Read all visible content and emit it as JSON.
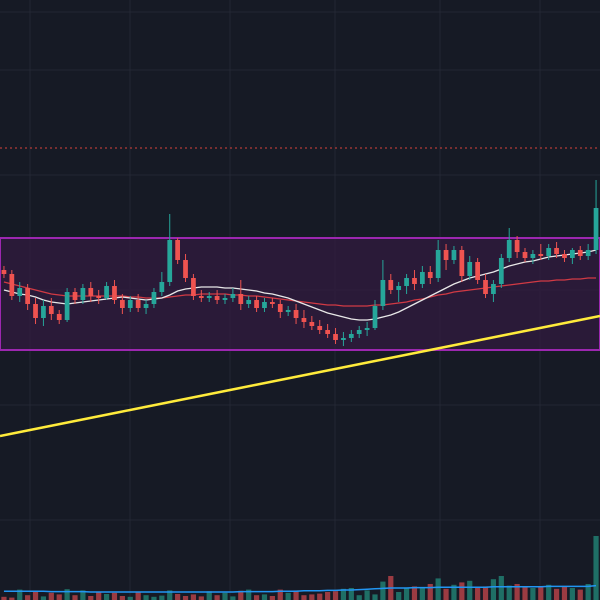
{
  "chart_data": {
    "type": "candlestick",
    "title": "",
    "xlabel": "",
    "ylabel": "",
    "grid": true,
    "legend": "none",
    "ylim": [
      0,
      600
    ],
    "volume_ylim": [
      0,
      300
    ],
    "colors": {
      "background": "#161a25",
      "grid": "#232733",
      "up": "#26a69a",
      "down": "#ef5350",
      "up_volume": "#1f6f66",
      "down_volume": "#9b3b42",
      "range_box_border": "#9c27b0",
      "range_box_fill": "#311b3f",
      "reference_line": "#d8413a",
      "ma_fast": "#e8e8e8",
      "ma_mid": "#d13a44",
      "ma_slow": "#ffeb3b",
      "volume_ma": "#2196f3"
    },
    "reference_level": 452,
    "range_box": {
      "upper": 362,
      "lower": 250
    },
    "candles": [
      {
        "o": 330,
        "h": 334,
        "l": 322,
        "c": 326
      },
      {
        "o": 326,
        "h": 330,
        "l": 300,
        "c": 304
      },
      {
        "o": 304,
        "h": 318,
        "l": 298,
        "c": 312
      },
      {
        "o": 312,
        "h": 316,
        "l": 290,
        "c": 296
      },
      {
        "o": 296,
        "h": 302,
        "l": 276,
        "c": 282
      },
      {
        "o": 282,
        "h": 300,
        "l": 274,
        "c": 294
      },
      {
        "o": 294,
        "h": 302,
        "l": 280,
        "c": 286
      },
      {
        "o": 286,
        "h": 290,
        "l": 276,
        "c": 280
      },
      {
        "o": 280,
        "h": 312,
        "l": 278,
        "c": 308
      },
      {
        "o": 308,
        "h": 312,
        "l": 296,
        "c": 300
      },
      {
        "o": 300,
        "h": 316,
        "l": 296,
        "c": 312
      },
      {
        "o": 312,
        "h": 318,
        "l": 298,
        "c": 304
      },
      {
        "o": 304,
        "h": 310,
        "l": 296,
        "c": 302
      },
      {
        "o": 302,
        "h": 318,
        "l": 300,
        "c": 314
      },
      {
        "o": 314,
        "h": 320,
        "l": 296,
        "c": 300
      },
      {
        "o": 300,
        "h": 306,
        "l": 286,
        "c": 292
      },
      {
        "o": 292,
        "h": 304,
        "l": 288,
        "c": 300
      },
      {
        "o": 300,
        "h": 306,
        "l": 288,
        "c": 292
      },
      {
        "o": 292,
        "h": 300,
        "l": 286,
        "c": 296
      },
      {
        "o": 296,
        "h": 312,
        "l": 292,
        "c": 308
      },
      {
        "o": 308,
        "h": 328,
        "l": 304,
        "c": 318
      },
      {
        "o": 318,
        "h": 386,
        "l": 314,
        "c": 360
      },
      {
        "o": 360,
        "h": 362,
        "l": 336,
        "c": 340
      },
      {
        "o": 340,
        "h": 346,
        "l": 318,
        "c": 322
      },
      {
        "o": 322,
        "h": 326,
        "l": 300,
        "c": 304
      },
      {
        "o": 304,
        "h": 310,
        "l": 298,
        "c": 302
      },
      {
        "o": 302,
        "h": 308,
        "l": 298,
        "c": 304
      },
      {
        "o": 304,
        "h": 310,
        "l": 296,
        "c": 300
      },
      {
        "o": 300,
        "h": 306,
        "l": 296,
        "c": 302
      },
      {
        "o": 302,
        "h": 312,
        "l": 298,
        "c": 306
      },
      {
        "o": 306,
        "h": 320,
        "l": 290,
        "c": 296
      },
      {
        "o": 296,
        "h": 304,
        "l": 292,
        "c": 300
      },
      {
        "o": 300,
        "h": 304,
        "l": 288,
        "c": 292
      },
      {
        "o": 292,
        "h": 302,
        "l": 288,
        "c": 298
      },
      {
        "o": 298,
        "h": 302,
        "l": 292,
        "c": 296
      },
      {
        "o": 296,
        "h": 300,
        "l": 282,
        "c": 288
      },
      {
        "o": 288,
        "h": 294,
        "l": 284,
        "c": 290
      },
      {
        "o": 290,
        "h": 296,
        "l": 276,
        "c": 282
      },
      {
        "o": 282,
        "h": 290,
        "l": 272,
        "c": 278
      },
      {
        "o": 278,
        "h": 284,
        "l": 270,
        "c": 274
      },
      {
        "o": 274,
        "h": 280,
        "l": 266,
        "c": 270
      },
      {
        "o": 270,
        "h": 276,
        "l": 262,
        "c": 266
      },
      {
        "o": 266,
        "h": 272,
        "l": 256,
        "c": 260
      },
      {
        "o": 260,
        "h": 268,
        "l": 254,
        "c": 262
      },
      {
        "o": 262,
        "h": 270,
        "l": 258,
        "c": 266
      },
      {
        "o": 266,
        "h": 274,
        "l": 262,
        "c": 270
      },
      {
        "o": 270,
        "h": 278,
        "l": 264,
        "c": 272
      },
      {
        "o": 272,
        "h": 300,
        "l": 270,
        "c": 294
      },
      {
        "o": 294,
        "h": 340,
        "l": 290,
        "c": 320
      },
      {
        "o": 320,
        "h": 326,
        "l": 306,
        "c": 310
      },
      {
        "o": 310,
        "h": 318,
        "l": 298,
        "c": 314
      },
      {
        "o": 314,
        "h": 326,
        "l": 306,
        "c": 322
      },
      {
        "o": 322,
        "h": 330,
        "l": 310,
        "c": 316
      },
      {
        "o": 316,
        "h": 334,
        "l": 312,
        "c": 328
      },
      {
        "o": 328,
        "h": 334,
        "l": 316,
        "c": 322
      },
      {
        "o": 322,
        "h": 360,
        "l": 318,
        "c": 350
      },
      {
        "o": 350,
        "h": 356,
        "l": 330,
        "c": 340
      },
      {
        "o": 340,
        "h": 354,
        "l": 336,
        "c": 350
      },
      {
        "o": 350,
        "h": 354,
        "l": 318,
        "c": 324
      },
      {
        "o": 324,
        "h": 344,
        "l": 320,
        "c": 338
      },
      {
        "o": 338,
        "h": 342,
        "l": 316,
        "c": 320
      },
      {
        "o": 320,
        "h": 326,
        "l": 302,
        "c": 306
      },
      {
        "o": 306,
        "h": 320,
        "l": 298,
        "c": 316
      },
      {
        "o": 316,
        "h": 346,
        "l": 312,
        "c": 342
      },
      {
        "o": 342,
        "h": 372,
        "l": 338,
        "c": 360
      },
      {
        "o": 360,
        "h": 364,
        "l": 342,
        "c": 348
      },
      {
        "o": 348,
        "h": 352,
        "l": 338,
        "c": 342
      },
      {
        "o": 342,
        "h": 350,
        "l": 336,
        "c": 346
      },
      {
        "o": 346,
        "h": 356,
        "l": 340,
        "c": 344
      },
      {
        "o": 344,
        "h": 356,
        "l": 340,
        "c": 352
      },
      {
        "o": 352,
        "h": 358,
        "l": 342,
        "c": 346
      },
      {
        "o": 346,
        "h": 350,
        "l": 338,
        "c": 342
      },
      {
        "o": 342,
        "h": 352,
        "l": 336,
        "c": 350
      },
      {
        "o": 350,
        "h": 354,
        "l": 340,
        "c": 344
      },
      {
        "o": 344,
        "h": 356,
        "l": 340,
        "c": 350
      },
      {
        "o": 350,
        "h": 420,
        "l": 346,
        "c": 392
      }
    ],
    "ma_fast": [
      310,
      308,
      306,
      305,
      303,
      300,
      298,
      297,
      296,
      297,
      298,
      299,
      300,
      301,
      302,
      303,
      302,
      301,
      300,
      301,
      302,
      305,
      309,
      311,
      312,
      313,
      313,
      313,
      312,
      312,
      311,
      310,
      309,
      307,
      306,
      304,
      302,
      299,
      296,
      293,
      290,
      287,
      285,
      283,
      281,
      280,
      280,
      281,
      283,
      285,
      288,
      292,
      296,
      300,
      304,
      308,
      312,
      316,
      319,
      322,
      324,
      326,
      328,
      331,
      334,
      336,
      338,
      339,
      341,
      343,
      344,
      345,
      346,
      347,
      348,
      350
    ],
    "ma_mid": [
      318,
      316,
      314,
      312,
      310,
      308,
      306,
      305,
      304,
      304,
      304,
      304,
      304,
      304,
      304,
      304,
      303,
      303,
      302,
      302,
      302,
      303,
      304,
      305,
      305,
      306,
      306,
      306,
      306,
      305,
      305,
      304,
      304,
      303,
      302,
      301,
      300,
      299,
      298,
      297,
      296,
      295,
      295,
      294,
      294,
      294,
      294,
      295,
      295,
      296,
      297,
      298,
      300,
      301,
      303,
      305,
      306,
      308,
      309,
      310,
      311,
      312,
      313,
      314,
      315,
      316,
      317,
      318,
      319,
      319,
      320,
      320,
      321,
      321,
      322,
      322
    ],
    "ma_slow": [
      164,
      167,
      170,
      173,
      176,
      179,
      182,
      185,
      188,
      191,
      194,
      197,
      200,
      203,
      206,
      209,
      212,
      215,
      218,
      221,
      224,
      227,
      230,
      233,
      236,
      239,
      242,
      245,
      248,
      251,
      254,
      257,
      260,
      263,
      266,
      269,
      272,
      275,
      278,
      281,
      284
    ],
    "volume": [
      8,
      6,
      26,
      12,
      22,
      9,
      18,
      14,
      27,
      12,
      24,
      10,
      20,
      15,
      18,
      10,
      8,
      20,
      12,
      8,
      11,
      24,
      15,
      10,
      14,
      9,
      22,
      12,
      18,
      9,
      23,
      26,
      12,
      14,
      10,
      26,
      18,
      24,
      12,
      14,
      16,
      20,
      22,
      28,
      30,
      12,
      24,
      14,
      46,
      60,
      20,
      30,
      34,
      30,
      40,
      54,
      28,
      38,
      44,
      48,
      30,
      34,
      52,
      60,
      36,
      40,
      32,
      30,
      34,
      38,
      28,
      34,
      30,
      26,
      40,
      160
    ],
    "volume_ma": [
      22,
      22,
      22,
      22,
      22,
      22,
      21,
      21,
      21,
      21,
      21,
      20,
      20,
      20,
      20,
      20,
      20,
      20,
      20,
      20,
      20,
      20,
      20,
      20,
      20,
      20,
      20,
      20,
      20,
      20,
      21,
      21,
      21,
      21,
      21,
      22,
      22,
      22,
      23,
      23,
      23,
      24,
      24,
      25,
      25,
      26,
      27,
      28,
      29,
      30,
      30,
      30,
      31,
      31,
      31,
      32,
      32,
      32,
      32,
      32,
      32,
      32,
      33,
      33,
      33,
      33,
      33,
      33,
      33,
      34,
      34,
      34,
      34,
      34,
      34,
      36
    ]
  }
}
